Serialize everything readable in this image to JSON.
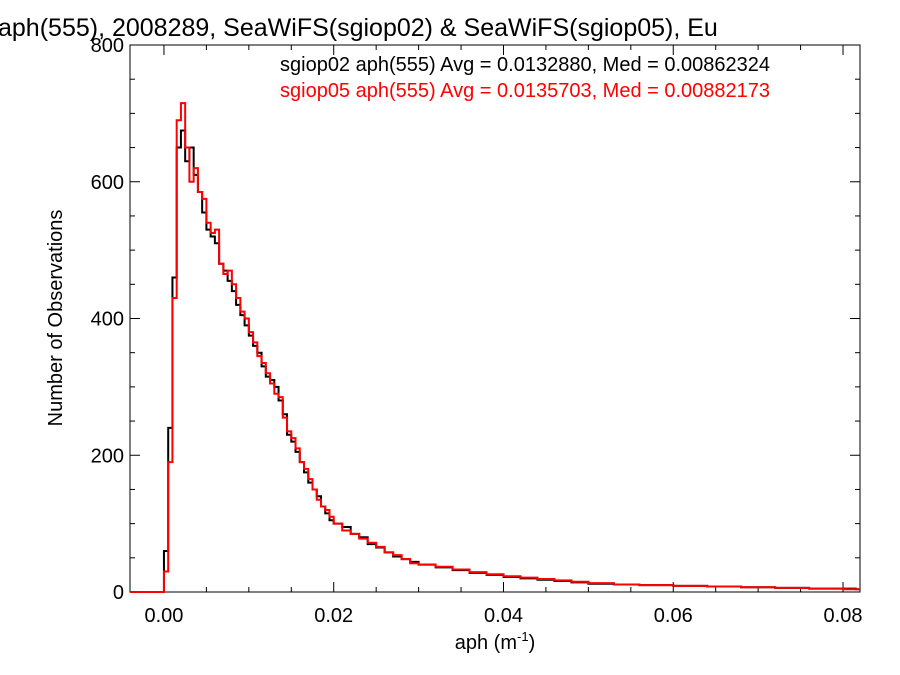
{
  "chart_data": {
    "type": "line",
    "title": "aph(555), 2008289, SeaWiFS(sgiop02) & SeaWiFS(sgiop05), Eu",
    "xlabel": "aph (m",
    "xlabel_sup": "-1",
    "xlabel_close": ")",
    "ylabel": "Number of Observations",
    "xlim": [
      -0.004,
      0.082
    ],
    "ylim": [
      0,
      800
    ],
    "xticks": [
      0.0,
      0.02,
      0.04,
      0.06,
      0.08
    ],
    "xtick_labels": [
      "0.00",
      "0.02",
      "0.04",
      "0.06",
      "0.08"
    ],
    "yticks": [
      0,
      200,
      400,
      600,
      800
    ],
    "ytick_labels": [
      "0",
      "200",
      "400",
      "600",
      "800"
    ],
    "grid": false,
    "legend_position": "top-right",
    "bin_width": 0.0005,
    "series": [
      {
        "name": "sgiop02 aph(555) Avg = 0.0132880, Med = 0.00862324",
        "color": "#000000",
        "x": [
          -0.004,
          -0.0035,
          -0.003,
          -0.0025,
          -0.002,
          -0.0015,
          -0.001,
          -0.0005,
          0.0,
          0.0005,
          0.001,
          0.0015,
          0.002,
          0.0025,
          0.003,
          0.0035,
          0.004,
          0.0045,
          0.005,
          0.0055,
          0.006,
          0.0065,
          0.007,
          0.0075,
          0.008,
          0.0085,
          0.009,
          0.0095,
          0.01,
          0.0105,
          0.011,
          0.0115,
          0.012,
          0.0125,
          0.013,
          0.0135,
          0.014,
          0.0145,
          0.015,
          0.0155,
          0.016,
          0.0165,
          0.017,
          0.0175,
          0.018,
          0.0185,
          0.019,
          0.0195,
          0.02,
          0.021,
          0.022,
          0.023,
          0.024,
          0.025,
          0.026,
          0.027,
          0.028,
          0.029,
          0.03,
          0.032,
          0.034,
          0.036,
          0.038,
          0.04,
          0.042,
          0.044,
          0.046,
          0.048,
          0.05,
          0.053,
          0.056,
          0.06,
          0.064,
          0.068,
          0.072,
          0.076,
          0.08,
          0.0815
        ],
        "y": [
          0,
          0,
          0,
          0,
          0,
          0,
          0,
          0,
          60,
          240,
          460,
          650,
          675,
          630,
          650,
          610,
          585,
          555,
          530,
          520,
          510,
          480,
          470,
          455,
          440,
          420,
          405,
          390,
          375,
          360,
          350,
          330,
          315,
          310,
          300,
          280,
          260,
          230,
          220,
          205,
          190,
          175,
          160,
          150,
          140,
          125,
          115,
          105,
          100,
          95,
          85,
          80,
          70,
          65,
          58,
          52,
          48,
          44,
          40,
          36,
          32,
          28,
          25,
          22,
          20,
          18,
          16,
          14,
          12,
          11,
          10,
          9,
          8,
          7,
          6,
          5,
          5,
          4
        ]
      },
      {
        "name": "sgiop05 aph(555) Avg = 0.0135703, Med = 0.00882173",
        "color": "#ff0000",
        "x": [
          -0.004,
          -0.0035,
          -0.003,
          -0.0025,
          -0.002,
          -0.0015,
          -0.001,
          -0.0005,
          0.0,
          0.0005,
          0.001,
          0.0015,
          0.002,
          0.0025,
          0.003,
          0.0035,
          0.004,
          0.0045,
          0.005,
          0.0055,
          0.006,
          0.0065,
          0.007,
          0.0075,
          0.008,
          0.0085,
          0.009,
          0.0095,
          0.01,
          0.0105,
          0.011,
          0.0115,
          0.012,
          0.0125,
          0.013,
          0.0135,
          0.014,
          0.0145,
          0.015,
          0.0155,
          0.016,
          0.0165,
          0.017,
          0.0175,
          0.018,
          0.0185,
          0.019,
          0.0195,
          0.02,
          0.021,
          0.022,
          0.023,
          0.024,
          0.025,
          0.026,
          0.027,
          0.028,
          0.029,
          0.03,
          0.032,
          0.034,
          0.036,
          0.038,
          0.04,
          0.042,
          0.044,
          0.046,
          0.048,
          0.05,
          0.053,
          0.056,
          0.06,
          0.064,
          0.068,
          0.072,
          0.076,
          0.08,
          0.0815
        ],
        "y": [
          0,
          0,
          0,
          0,
          0,
          0,
          0,
          0,
          30,
          190,
          430,
          690,
          715,
          650,
          600,
          620,
          585,
          575,
          540,
          525,
          530,
          480,
          465,
          470,
          450,
          430,
          410,
          400,
          380,
          365,
          345,
          335,
          320,
          305,
          290,
          285,
          255,
          235,
          225,
          210,
          190,
          180,
          165,
          150,
          135,
          125,
          120,
          110,
          100,
          90,
          85,
          78,
          72,
          66,
          58,
          54,
          48,
          42,
          40,
          37,
          33,
          29,
          26,
          23,
          21,
          19,
          17,
          15,
          13,
          11,
          10,
          9,
          8,
          7,
          6,
          5,
          4,
          4
        ]
      }
    ]
  }
}
